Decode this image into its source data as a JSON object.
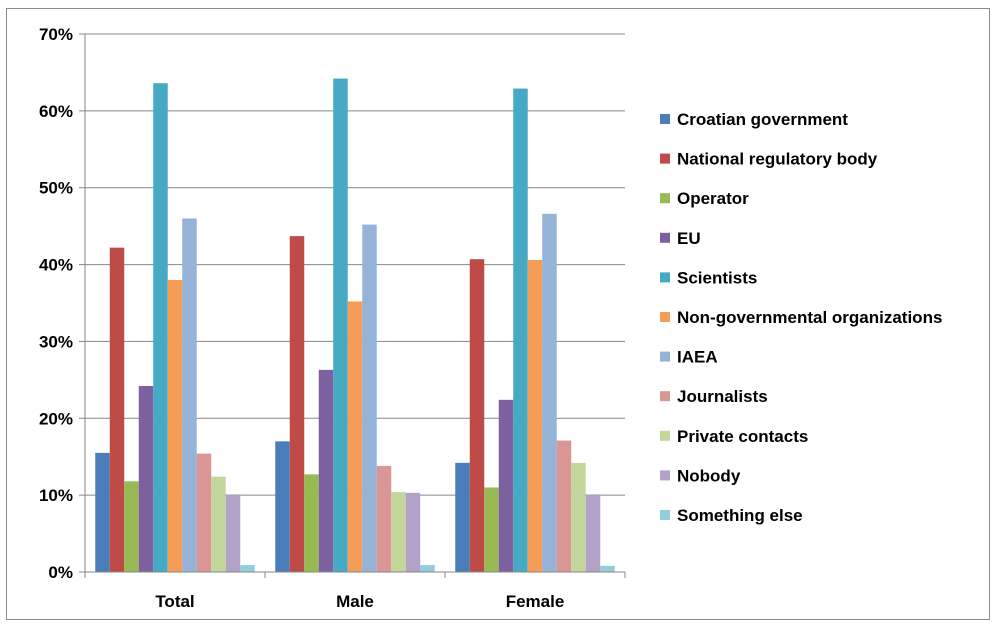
{
  "chart_data": {
    "type": "bar",
    "categories": [
      "Total",
      "Male",
      "Female"
    ],
    "ylim": [
      0,
      70
    ],
    "yticks": [
      "0%",
      "10%",
      "20%",
      "30%",
      "40%",
      "50%",
      "60%",
      "70%"
    ],
    "ytick_values": [
      0,
      10,
      20,
      30,
      40,
      50,
      60,
      70
    ],
    "grid": true,
    "legend_position": "right",
    "series": [
      {
        "name": "Croatian government",
        "color": "#4A7EBB",
        "values": [
          15.5,
          17.0,
          14.2
        ]
      },
      {
        "name": "National regulatory body",
        "color": "#BE4B48",
        "values": [
          42.2,
          43.7,
          40.7
        ]
      },
      {
        "name": "Operator",
        "color": "#98B954",
        "values": [
          11.8,
          12.7,
          11.0
        ]
      },
      {
        "name": "EU",
        "color": "#7D60A0",
        "values": [
          24.2,
          26.3,
          22.4
        ]
      },
      {
        "name": "Scientists",
        "color": "#46AAC5",
        "values": [
          63.6,
          64.2,
          62.9
        ]
      },
      {
        "name": "Non-governmental organizations",
        "color": "#F59D56",
        "values": [
          38.0,
          35.2,
          40.6
        ]
      },
      {
        "name": "IAEA",
        "color": "#95B3D7",
        "values": [
          46.0,
          45.2,
          46.6
        ]
      },
      {
        "name": "Journalists",
        "color": "#D99694",
        "values": [
          15.4,
          13.8,
          17.1
        ]
      },
      {
        "name": "Private contacts",
        "color": "#C3D69B",
        "values": [
          12.4,
          10.4,
          14.2
        ]
      },
      {
        "name": "Nobody",
        "color": "#B3A2C7",
        "values": [
          10.1,
          10.3,
          10.1
        ]
      },
      {
        "name": "Something else",
        "color": "#92CDDC",
        "values": [
          0.9,
          0.9,
          0.8
        ]
      }
    ]
  }
}
